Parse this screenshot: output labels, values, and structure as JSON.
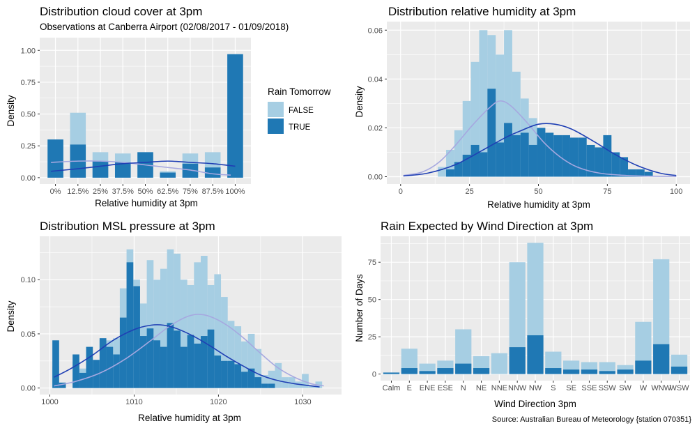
{
  "colors": {
    "false": "#a6cee3",
    "true": "#1f78b4",
    "density_false": "#a6a8e0",
    "density_true": "#1f3fb4",
    "panel_bg": "#ebebeb",
    "grid": "#ffffff"
  },
  "legend": {
    "title": "Rain Tomorrow",
    "entries": [
      "FALSE",
      "TRUE"
    ]
  },
  "caption": "Source: Australian Bureau of Meteorology {station 070351}",
  "chart_data": [
    {
      "type": "bar",
      "title": "Distribution cloud cover at 3pm",
      "subtitle": "Observations at Canberra Airport (02/08/2017 - 01/09/2018)",
      "xlabel": "Relative humidity at 3pm",
      "ylabel": "Density",
      "x_ticks": [
        "0%",
        "12.5%",
        "25%",
        "37.5%",
        "50%",
        "62.5%",
        "75%",
        "87.5%",
        "100%"
      ],
      "y_ticks": [
        "0.00",
        "0.25",
        "0.50",
        "0.75",
        "1.00"
      ],
      "ylim": [
        -0.05,
        1.1
      ],
      "xlim": [
        -0.7,
        8.7
      ],
      "bar_x": [
        0,
        1,
        2,
        3,
        4,
        5,
        6,
        7,
        8
      ],
      "series": [
        {
          "name": "FALSE",
          "values": [
            0.3,
            0.51,
            0.2,
            0.19,
            0.2,
            0.05,
            0.19,
            0.2,
            0.97
          ]
        },
        {
          "name": "TRUE",
          "values": [
            0.3,
            0.26,
            0.13,
            0.12,
            0.2,
            0.04,
            0.11,
            0.08,
            0.97
          ]
        }
      ],
      "density": [
        {
          "name": "FALSE",
          "x": [
            -0.2,
            1,
            2,
            3,
            4,
            5,
            6,
            7,
            7.8
          ],
          "y": [
            0.12,
            0.13,
            0.13,
            0.12,
            0.1,
            0.08,
            0.06,
            0.03,
            0.02
          ]
        },
        {
          "name": "TRUE",
          "x": [
            -0.2,
            1,
            2,
            3,
            4,
            5,
            6,
            7,
            8
          ],
          "y": [
            0.05,
            0.07,
            0.09,
            0.11,
            0.12,
            0.13,
            0.12,
            0.11,
            0.09
          ]
        }
      ]
    },
    {
      "type": "bar",
      "title": "Distribution relative humidity at 3pm",
      "xlabel": "Relative humidity at 3pm",
      "ylabel": "Density",
      "x_ticks": [
        0,
        25,
        50,
        75,
        100
      ],
      "y_ticks": [
        "0.00",
        "0.02",
        "0.04",
        "0.06"
      ],
      "ylim": [
        -0.003,
        0.0635
      ],
      "xlim": [
        -5,
        105
      ],
      "bar_x": [
        0,
        3,
        6,
        9,
        12,
        15,
        18,
        21,
        24,
        27,
        30,
        33,
        36,
        39,
        42,
        45,
        48,
        51,
        54,
        57,
        60,
        63,
        66,
        69,
        72,
        75,
        78,
        81,
        84,
        87,
        90,
        93,
        96,
        99
      ],
      "bar_width": 3,
      "series": [
        {
          "name": "FALSE",
          "values": [
            0,
            0,
            0,
            0,
            0,
            0.004,
            0.011,
            0.019,
            0.031,
            0.047,
            0.06,
            0.058,
            0.05,
            0.06,
            0.043,
            0.032,
            0.024,
            0.017,
            0.012,
            0.009,
            0.007,
            0.004,
            0.003,
            0.002,
            0.001,
            0.001,
            0,
            0,
            0,
            0,
            0,
            0,
            0,
            0
          ]
        },
        {
          "name": "TRUE",
          "values": [
            0,
            0,
            0,
            0,
            0,
            0,
            0.003,
            0.006,
            0.009,
            0.013,
            0.01,
            0.036,
            0.014,
            0.022,
            0.017,
            0.018,
            0.013,
            0.02,
            0.018,
            0.017,
            0.017,
            0.016,
            0.016,
            0.013,
            0.012,
            0.017,
            0.01,
            0.008,
            0.003,
            0.003,
            0.002,
            0,
            0,
            0
          ]
        }
      ],
      "density": [
        {
          "name": "FALSE",
          "x": [
            1,
            8,
            14,
            20,
            26,
            32,
            36,
            40,
            46,
            52,
            58,
            64,
            72,
            82,
            92,
            100
          ],
          "y": [
            0.0005,
            0.002,
            0.006,
            0.013,
            0.021,
            0.028,
            0.031,
            0.029,
            0.022,
            0.014,
            0.008,
            0.004,
            0.0015,
            0.0005,
            0.0002,
            0.0001
          ]
        },
        {
          "name": "TRUE",
          "x": [
            1,
            10,
            20,
            30,
            38,
            44,
            50,
            56,
            62,
            70,
            78,
            86,
            94,
            100
          ],
          "y": [
            0.0003,
            0.0015,
            0.005,
            0.011,
            0.016,
            0.019,
            0.0215,
            0.0215,
            0.0195,
            0.0145,
            0.009,
            0.0045,
            0.0015,
            0.0005
          ]
        }
      ]
    },
    {
      "type": "bar",
      "title": "Distribution MSL pressure at 3pm",
      "xlabel": "Relative humidity at 3pm",
      "ylabel": "Density",
      "x_ticks": [
        1000,
        1010,
        1020,
        1030
      ],
      "y_ticks": [
        "0.00",
        "0.05",
        "0.10"
      ],
      "ylim": [
        -0.006,
        0.14
      ],
      "xlim": [
        998.8,
        1034.6
      ],
      "bar_x": [
        1000.7,
        1001.5,
        1002.3,
        1003.1,
        1003.9,
        1004.7,
        1005.5,
        1006.3,
        1007.1,
        1007.9,
        1008.7,
        1009.5,
        1010.3,
        1011.1,
        1011.9,
        1012.7,
        1013.5,
        1014.3,
        1015.1,
        1015.9,
        1016.7,
        1017.5,
        1018.3,
        1019.1,
        1019.9,
        1020.7,
        1021.5,
        1022.3,
        1023.1,
        1023.9,
        1024.7,
        1025.5,
        1026.3,
        1027.1,
        1027.9,
        1028.7,
        1029.5,
        1030.3,
        1031.1,
        1031.9
      ],
      "bar_width": 0.8,
      "series": [
        {
          "name": "FALSE",
          "values": [
            0.02,
            0.005,
            0,
            0.024,
            0.018,
            0.028,
            0.022,
            0.044,
            0.044,
            0.046,
            0.092,
            0.128,
            0.1,
            0.078,
            0.118,
            0.1,
            0.11,
            0.128,
            0.124,
            0.1,
            0.095,
            0.116,
            0.122,
            0.095,
            0.105,
            0.084,
            0.062,
            0.057,
            0.043,
            0.05,
            0.036,
            0.012,
            0.016,
            0.023,
            0.01,
            0.01,
            0.006,
            0.013,
            0.002,
            0.006
          ]
        },
        {
          "name": "TRUE",
          "values": [
            0.044,
            0.005,
            0,
            0.031,
            0.014,
            0.038,
            0.026,
            0.046,
            0.038,
            0.031,
            0.065,
            0.116,
            0.094,
            0.048,
            0.055,
            0.044,
            0.038,
            0.06,
            0.053,
            0.038,
            0.049,
            0.041,
            0.048,
            0.054,
            0.03,
            0.025,
            0.025,
            0.022,
            0.015,
            0.018,
            0.01,
            0.004,
            0.004,
            0,
            0,
            0,
            0,
            0,
            0,
            0
          ]
        }
      ],
      "density": [
        {
          "name": "FALSE",
          "x": [
            1000.5,
            1003,
            1006,
            1009,
            1012,
            1014,
            1016,
            1017.5,
            1019,
            1021,
            1023,
            1025,
            1027,
            1029,
            1031,
            1032.5
          ],
          "y": [
            0.002,
            0.006,
            0.014,
            0.027,
            0.044,
            0.056,
            0.065,
            0.068,
            0.066,
            0.058,
            0.046,
            0.032,
            0.019,
            0.01,
            0.004,
            0.002
          ]
        },
        {
          "name": "TRUE",
          "x": [
            1000.5,
            1002.5,
            1005,
            1007.5,
            1010,
            1012,
            1013.5,
            1015,
            1017,
            1019,
            1021,
            1023,
            1025,
            1027,
            1029,
            1031,
            1032
          ],
          "y": [
            0.01,
            0.018,
            0.03,
            0.044,
            0.054,
            0.058,
            0.058,
            0.055,
            0.048,
            0.039,
            0.029,
            0.02,
            0.012,
            0.007,
            0.004,
            0.002,
            0.001
          ]
        }
      ]
    },
    {
      "type": "bar",
      "title": "Rain Expected by Wind Direction at 3pm",
      "xlabel": "Wind Direction 3pm",
      "ylabel": "Number of Days",
      "categories": [
        "Calm",
        "E",
        "ENE",
        "ESE",
        "N",
        "NE",
        "NNE",
        "NNW",
        "NW",
        "S",
        "SE",
        "SSE",
        "SSW",
        "SW",
        "W",
        "WNW",
        "WSW"
      ],
      "y_ticks": [
        "0",
        "25",
        "50",
        "75"
      ],
      "ylim": [
        -4.4,
        92.4
      ],
      "series": [
        {
          "name": "FALSE",
          "values": [
            1,
            17,
            7,
            9,
            30,
            12,
            14,
            75,
            88,
            15,
            9,
            8,
            8,
            6,
            35,
            77,
            13
          ]
        },
        {
          "name": "TRUE",
          "values": [
            1,
            4,
            2,
            4,
            7,
            4,
            0,
            18,
            26,
            4,
            3,
            3,
            2,
            3,
            9,
            20,
            5
          ]
        }
      ]
    }
  ]
}
